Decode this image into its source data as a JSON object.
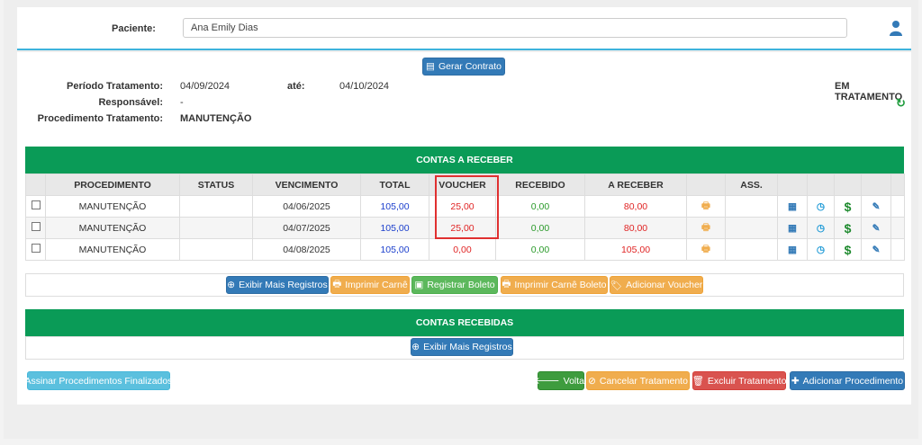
{
  "patient": {
    "label": "Paciente:",
    "value": "Ana Emily Dias"
  },
  "actions": {
    "gerar_contrato": "Gerar Contrato"
  },
  "info": {
    "periodo_label": "Período Tratamento:",
    "periodo_inicio": "04/09/2024",
    "ate_label": "até:",
    "periodo_fim": "04/10/2024",
    "responsavel_label": "Responsável:",
    "responsavel_value": "-",
    "procedimento_label": "Procedimento Tratamento:",
    "procedimento_value": "MANUTENÇÃO",
    "status": "EM TRATAMENTO"
  },
  "contas_receber": {
    "title": "CONTAS A RECEBER",
    "headers": [
      "PROCEDIMENTO",
      "STATUS",
      "VENCIMENTO",
      "TOTAL",
      "VOUCHER",
      "RECEBIDO",
      "A RECEBER",
      "ASS."
    ],
    "rows": [
      {
        "procedimento": "MANUTENÇÃO",
        "status": "",
        "vencimento": "04/06/2025",
        "total": "105,00",
        "voucher": "25,00",
        "recebido": "0,00",
        "a_receber": "80,00"
      },
      {
        "procedimento": "MANUTENÇÃO",
        "status": "",
        "vencimento": "04/07/2025",
        "total": "105,00",
        "voucher": "25,00",
        "recebido": "0,00",
        "a_receber": "80,00"
      },
      {
        "procedimento": "MANUTENÇÃO",
        "status": "",
        "vencimento": "04/08/2025",
        "total": "105,00",
        "voucher": "0,00",
        "recebido": "0,00",
        "a_receber": "105,00"
      }
    ]
  },
  "buttons": {
    "exibir_mais": "Exibir Mais Registros",
    "imprimir_carne": "Imprimir Carnê",
    "registrar_boleto": "Registrar Boleto",
    "imprimir_carne_boleto": "Imprimir Carnê Boleto",
    "adicionar_voucher": "Adicionar Voucher",
    "exibir_mais_recebidas": "Exibir Mais Registros",
    "assinar": "Assinar Procedimentos Finalizados",
    "voltar": "Voltar",
    "cancelar": "Cancelar Tratamento",
    "excluir": "Excluir Tratamento",
    "adicionar_procedimento": "Adicionar Procedimento"
  },
  "contas_recebidas": {
    "title": "CONTAS RECEBIDAS"
  },
  "colors": {
    "accent_green": "#0a9b57",
    "primary_blue": "#337ab7",
    "warning_orange": "#f0ad4e",
    "danger_red": "#d9534f",
    "info_cyan": "#5bc0de"
  }
}
